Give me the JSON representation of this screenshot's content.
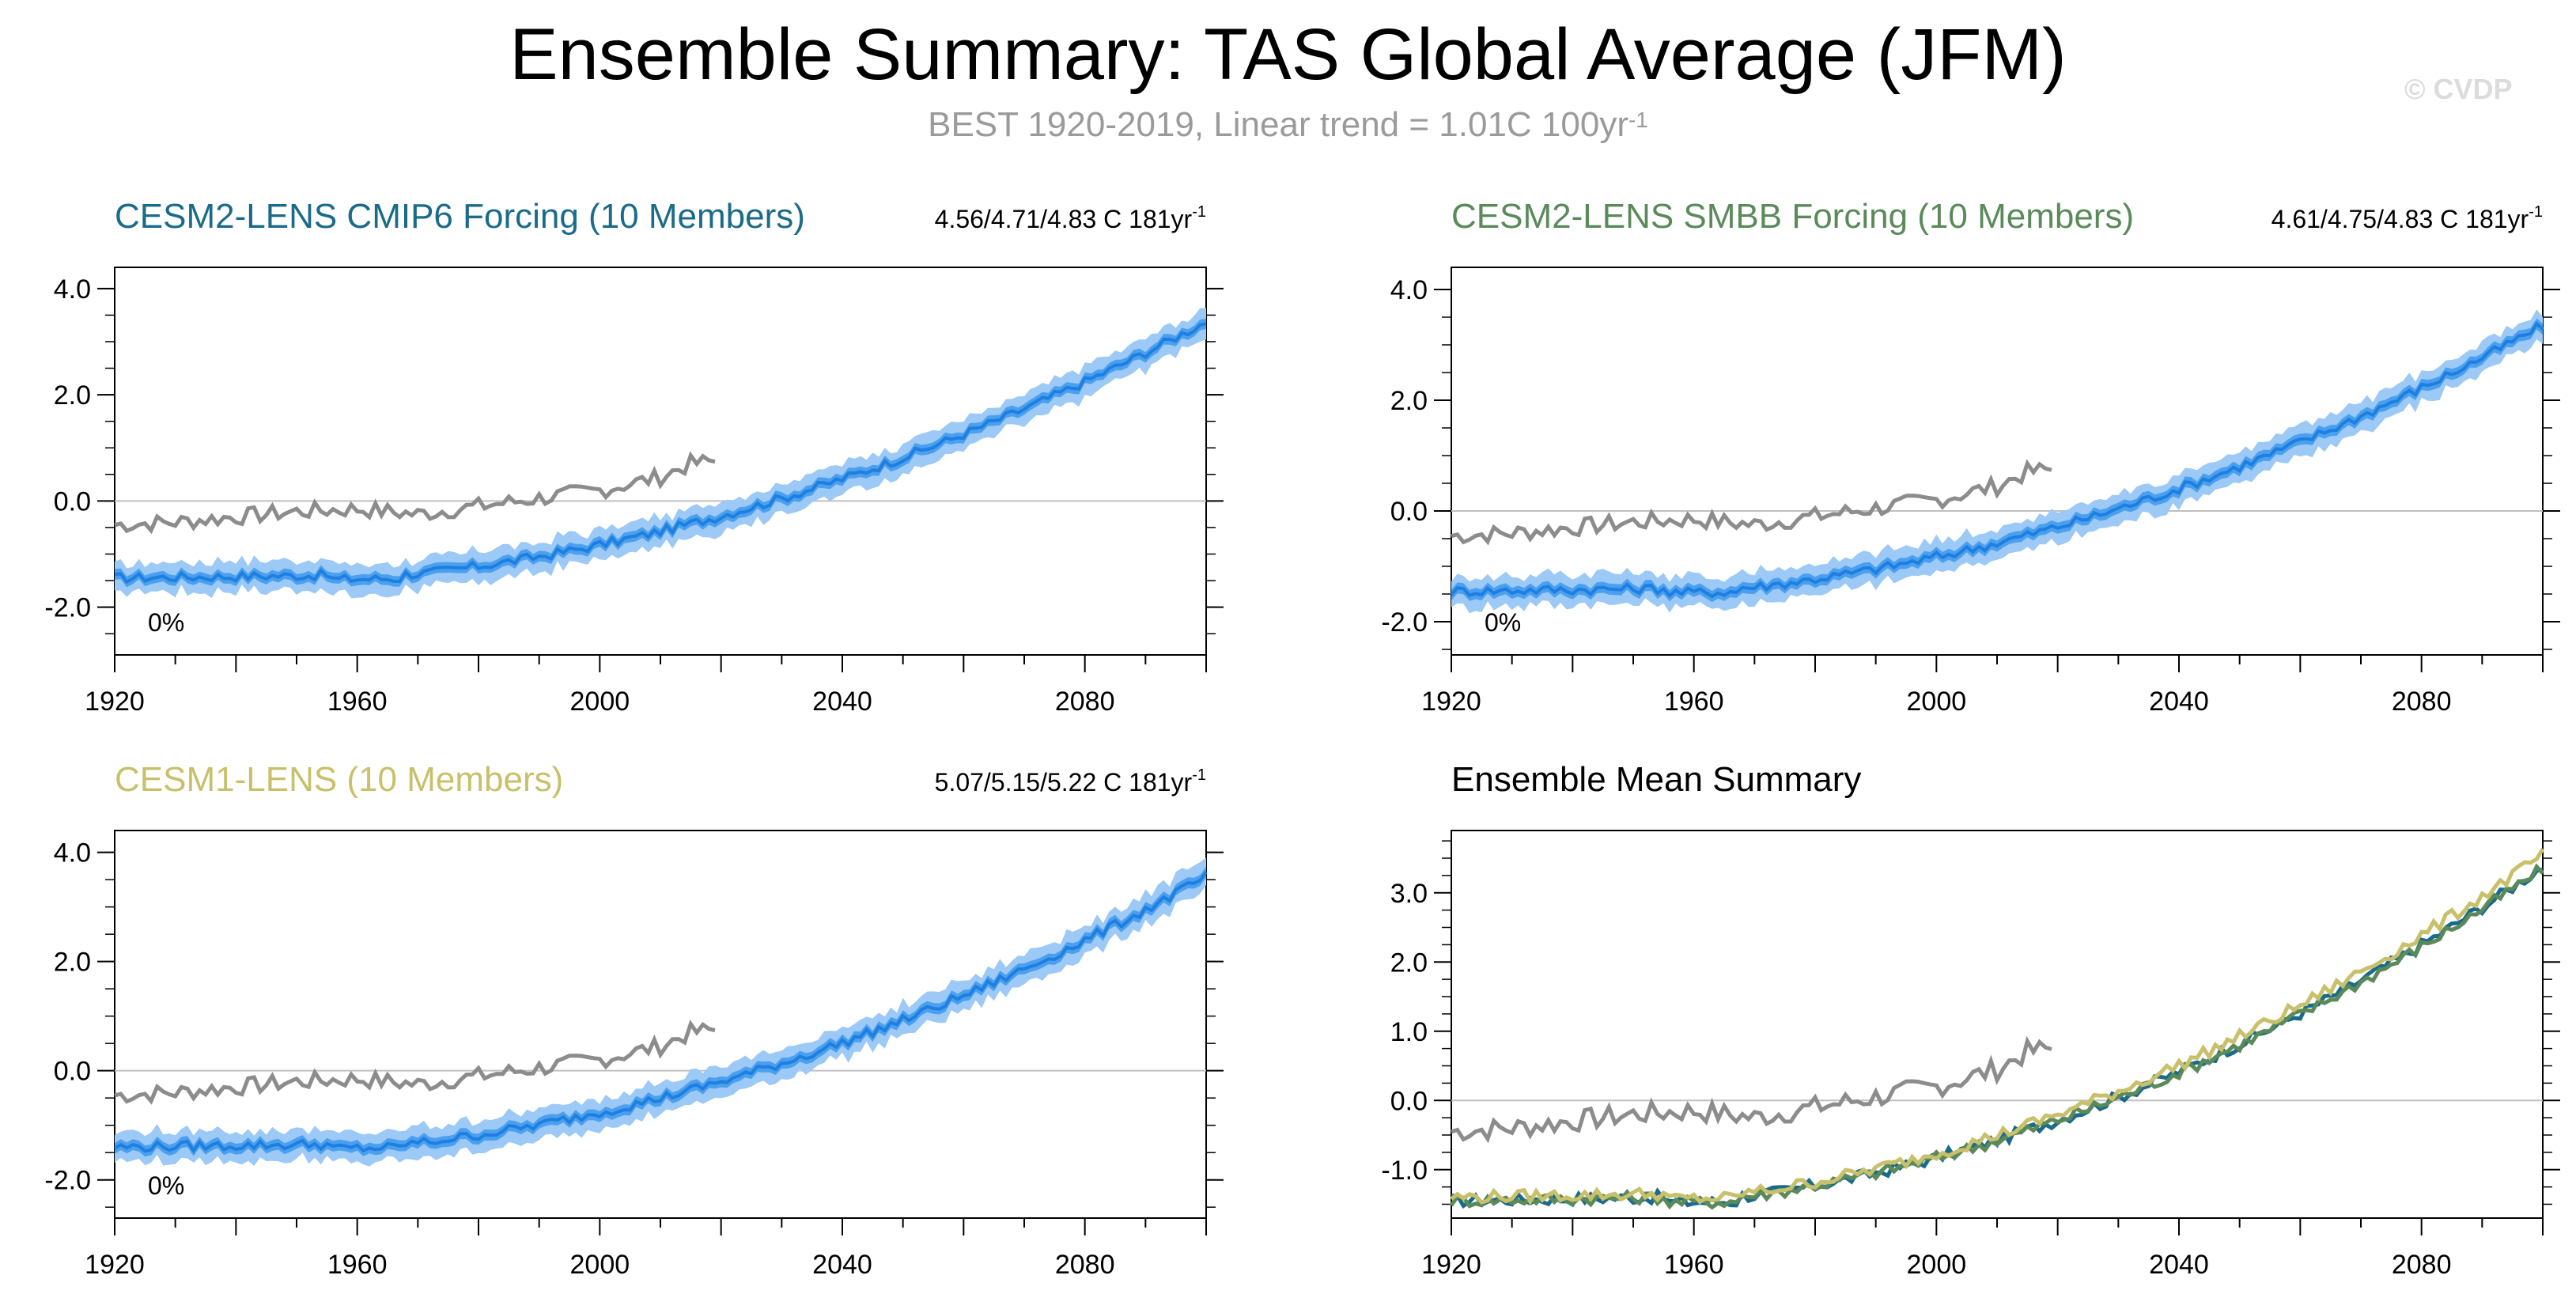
{
  "header": {
    "title": "Ensemble Summary: TAS Global Average (JFM)",
    "subtitle_main": "BEST 1920-2019, Linear trend = 1.01C 100yr",
    "subtitle_sup": "-1",
    "watermark": "© CVDP"
  },
  "colors": {
    "obs": "#8c8c8c",
    "band_outer": "#9cc9f5",
    "band_inner": "#4aa0ee",
    "ens_mean": "#1e7fe0",
    "cmip6": "#1a6b8a",
    "smbb": "#5a8a5a",
    "cesm1": "#c8c06a",
    "zero_line": "#c0c0c0"
  },
  "chart_data": [
    {
      "type": "line",
      "panel": "cesm2-cmip6",
      "title": "CESM2-LENS CMIP6 Forcing (10 Members)",
      "title_color": "#1a6b8a",
      "stat_text": "4.56/4.71/4.83 C 181yr",
      "stat_sup": "-1",
      "percent_label": "0%",
      "xlim": [
        1920,
        2100
      ],
      "ylim": [
        -2.9,
        4.4
      ],
      "yticks": [
        -2.0,
        0.0,
        2.0,
        4.0
      ],
      "ytick_labels": [
        "-2.0",
        "0.0",
        "2.0",
        "4.0"
      ],
      "xticks": [
        1920,
        1960,
        2000,
        2040,
        2080
      ],
      "xtick_labels": [
        "1920",
        "1960",
        "2000",
        "2040",
        "2080"
      ],
      "start": -1.45,
      "end": 3.38,
      "series": [
        {
          "role": "obs",
          "values": "obs"
        },
        {
          "role": "ensemble",
          "start": -1.45,
          "end": 3.38
        }
      ]
    },
    {
      "type": "line",
      "panel": "cesm2-smbb",
      "title": "CESM2-LENS SMBB Forcing (10 Members)",
      "title_color": "#5a8a5a",
      "stat_text": "4.61/4.75/4.83 C 181yr",
      "stat_sup": "-1",
      "percent_label": "0%",
      "xlim": [
        1920,
        2100
      ],
      "ylim": [
        -2.6,
        4.4
      ],
      "yticks": [
        -2.0,
        0.0,
        2.0,
        4.0
      ],
      "ytick_labels": [
        "-2.0",
        "0.0",
        "2.0",
        "4.0"
      ],
      "xticks": [
        1920,
        1960,
        2000,
        2040,
        2080
      ],
      "xtick_labels": [
        "1920",
        "1960",
        "2000",
        "2040",
        "2080"
      ],
      "start": -1.45,
      "end": 3.35
    },
    {
      "type": "line",
      "panel": "cesm1",
      "title": "CESM1-LENS (10 Members)",
      "title_color": "#c8c06a",
      "stat_text": "5.07/5.15/5.22 C 181yr",
      "stat_sup": "-1",
      "percent_label": "0%",
      "xlim": [
        1920,
        2100
      ],
      "ylim": [
        -2.7,
        4.4
      ],
      "yticks": [
        -2.0,
        0.0,
        2.0,
        4.0
      ],
      "ytick_labels": [
        "-2.0",
        "0.0",
        "2.0",
        "4.0"
      ],
      "xticks": [
        1920,
        1960,
        2000,
        2040,
        2080
      ],
      "xtick_labels": [
        "1920",
        "1960",
        "2000",
        "2040",
        "2080"
      ],
      "start": -1.4,
      "end": 3.55
    },
    {
      "type": "line",
      "panel": "ens-mean",
      "title": "Ensemble Mean Summary",
      "title_color": "#000000",
      "stat_text": "",
      "stat_sup": "",
      "percent_label": "",
      "xlim": [
        1920,
        2100
      ],
      "ylim": [
        -1.7,
        3.9
      ],
      "yticks": [
        -1.0,
        0.0,
        1.0,
        2.0,
        3.0
      ],
      "ytick_labels": [
        "-1.0",
        "0.0",
        "1.0",
        "2.0",
        "3.0"
      ],
      "xticks": [
        1920,
        1960,
        2000,
        2040,
        2080
      ],
      "xtick_labels": [
        "1920",
        "1960",
        "2000",
        "2040",
        "2080"
      ],
      "series": [
        {
          "role": "obs"
        },
        {
          "role": "cmip6",
          "start": -1.45,
          "end": 3.38
        },
        {
          "role": "smbb",
          "start": -1.45,
          "end": 3.35
        },
        {
          "role": "cesm1",
          "start": -1.4,
          "end": 3.55
        }
      ]
    }
  ],
  "obs_years": [
    1920,
    1930,
    1940,
    1950,
    1960,
    1970,
    1980,
    1990,
    2000,
    2010,
    2015,
    2019
  ],
  "obs_values": [
    -0.45,
    -0.4,
    -0.3,
    -0.2,
    -0.15,
    -0.25,
    -0.1,
    0.05,
    0.2,
    0.45,
    0.7,
    0.75
  ],
  "ens_years": [
    1920,
    1940,
    1960,
    1970,
    1990,
    2000,
    2020,
    2040,
    2060,
    2080,
    2100
  ],
  "ens_shape": [
    0.0,
    0.02,
    0.05,
    0.04,
    0.2,
    0.28,
    0.4,
    0.55,
    0.7,
    0.85,
    1.0
  ]
}
